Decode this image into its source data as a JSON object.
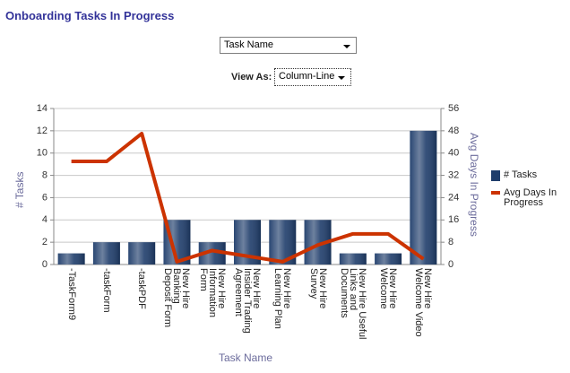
{
  "chart_data": {
    "type": "column-line",
    "title": "Onboarding Tasks In Progress",
    "x_label": "Task Name",
    "y_label": "# Tasks",
    "y2_label": "Avg Days In Progress",
    "categories": [
      "-TaskForm9",
      "-taskForm",
      "-taskPDF",
      "New Hire\nBanking\nDeposit Form",
      "New Hire\nInformation\nForm",
      "New Hire\nInsider Trading\nAgreement",
      "New Hire\nLearning Plan",
      "New Hire\nSurvey",
      "New Hire Useful\nLinks and\nDocuments",
      "New Hire\nWelcome",
      "New Hire\nWelcome Video"
    ],
    "series": [
      {
        "name": "# Tasks",
        "kind": "bar",
        "color": "#1f3d6b",
        "values": [
          1,
          2,
          2,
          4,
          2,
          4,
          4,
          4,
          1,
          1,
          12
        ]
      },
      {
        "name": "Avg Days In Progress",
        "kind": "line",
        "axis": "y2",
        "color": "#cc3300",
        "values": [
          37,
          37,
          47,
          1,
          5,
          3,
          1,
          7,
          11,
          11,
          2
        ]
      }
    ],
    "ylim": [
      0,
      14
    ],
    "yticks": [
      0,
      2,
      4,
      6,
      8,
      10,
      12,
      14
    ],
    "y2lim": [
      0,
      56
    ],
    "y2ticks": [
      0,
      8,
      16,
      24,
      32,
      40,
      48,
      56
    ],
    "grid": true,
    "legend": "right"
  },
  "controls": {
    "filter": "Task Name",
    "view_as_label": "View As:",
    "view_as": "Column-Line"
  }
}
